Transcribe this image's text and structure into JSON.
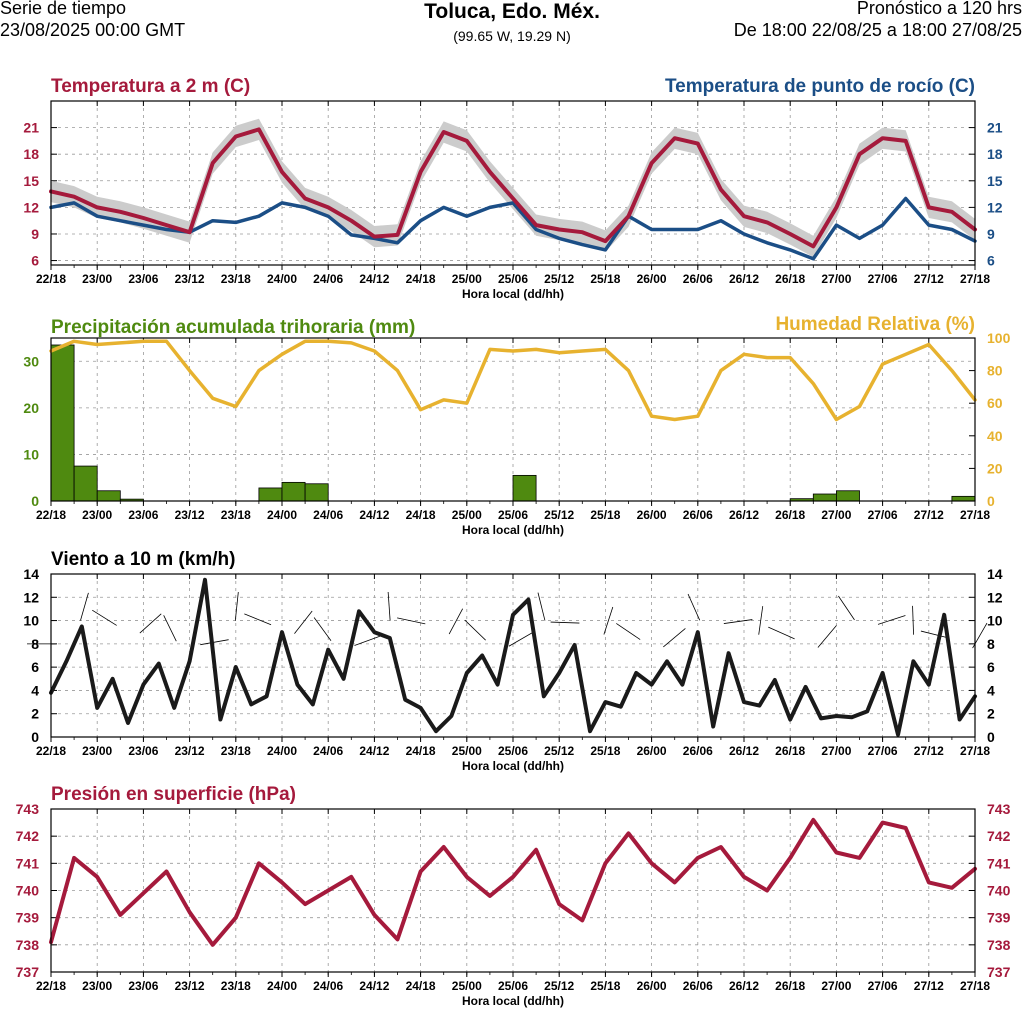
{
  "header": {
    "left_line1": "Serie de tiempo",
    "left_line2": "23/08/2025 00:00 GMT",
    "center_title": "Toluca, Edo. Méx.",
    "center_coords": "(99.65 W, 19.29 N)",
    "right_line1": "Pronóstico a 120 hrs",
    "right_line2": "De 18:00 22/08/25 a 18:00 27/08/25"
  },
  "colors": {
    "temp": "#a51a3c",
    "dew": "#1b4e86",
    "precip": "#4f8a10",
    "rh": "#e7b22f",
    "wind": "#1a1a1a",
    "pres": "#a51a3c",
    "band": "#cccccc",
    "grid": "#9a9a9a"
  },
  "chart_data": [
    {
      "type": "line",
      "title_left": "Temperatura a 2 m (C)",
      "title_right": "Temperatura de punto de rocío (C)",
      "xlabel": "Hora local (dd/hh)",
      "x_ticks": [
        "22/18",
        "23/00",
        "23/06",
        "23/12",
        "23/18",
        "24/00",
        "24/06",
        "24/12",
        "24/18",
        "25/00",
        "25/06",
        "25/12",
        "25/18",
        "26/00",
        "26/06",
        "26/12",
        "26/18",
        "27/00",
        "27/06",
        "27/12",
        "27/18"
      ],
      "x_range": [
        0,
        120
      ],
      "ylim": [
        5.5,
        24
      ],
      "y_ticks": [
        6,
        9,
        12,
        15,
        18,
        21
      ],
      "band_spread": 1.2,
      "series": [
        {
          "name": "Temperatura a 2 m",
          "x": [
            0,
            3,
            6,
            9,
            12,
            15,
            18,
            21,
            24,
            27,
            30,
            33,
            36,
            39,
            42,
            45,
            48,
            51,
            54,
            57,
            60,
            63,
            66,
            69,
            72,
            75,
            78,
            81,
            84,
            87,
            90,
            93,
            96,
            99,
            102,
            105,
            108,
            111,
            114,
            117,
            120
          ],
          "values": [
            13.8,
            13.2,
            12,
            11.5,
            10.8,
            10,
            9.2,
            17,
            20,
            20.8,
            16,
            13,
            12,
            10.5,
            8.7,
            8.9,
            16,
            20.5,
            19.5,
            16,
            13,
            10,
            9.5,
            9.2,
            8.2,
            11,
            17,
            19.8,
            19.2,
            14,
            11,
            10.3,
            9,
            7.6,
            12,
            18,
            19.8,
            19.5,
            12,
            11.5,
            9.5
          ]
        },
        {
          "name": "Temperatura de punto de rocío",
          "x": [
            0,
            3,
            6,
            9,
            12,
            15,
            18,
            21,
            24,
            27,
            30,
            33,
            36,
            39,
            42,
            45,
            48,
            51,
            54,
            57,
            60,
            63,
            66,
            69,
            72,
            75,
            78,
            81,
            84,
            87,
            90,
            93,
            96,
            99,
            102,
            105,
            108,
            111,
            114,
            117,
            120
          ],
          "values": [
            12,
            12.5,
            11,
            10.5,
            10,
            9.5,
            9.2,
            10.5,
            10.3,
            11,
            12.5,
            12,
            11,
            8.9,
            8.5,
            8,
            10.5,
            12,
            11,
            12,
            12.5,
            9.5,
            8.5,
            7.8,
            7.2,
            11,
            9.5,
            9.5,
            9.5,
            10.5,
            9,
            8,
            7.2,
            6.2,
            10,
            8.5,
            10,
            13,
            10,
            9.5,
            8.2
          ]
        }
      ],
      "right_y_ticks": [
        6,
        9,
        12,
        15,
        18,
        21
      ]
    },
    {
      "type": "bar",
      "title_left": "Precipitación acumulada trihoraria (mm)",
      "title_right": "Humedad Relativa (%)",
      "xlabel": "Hora local (dd/hh)",
      "x_ticks": [
        "22/18",
        "23/00",
        "23/06",
        "23/12",
        "23/18",
        "24/00",
        "24/06",
        "24/12",
        "24/18",
        "25/00",
        "25/06",
        "25/12",
        "25/18",
        "26/00",
        "26/06",
        "26/12",
        "26/18",
        "27/00",
        "27/06",
        "27/12",
        "27/18"
      ],
      "x_range": [
        0,
        120
      ],
      "ylim": [
        0,
        35
      ],
      "y_ticks": [
        0,
        10,
        20,
        30
      ],
      "y2lim": [
        0,
        100
      ],
      "y2_ticks": [
        0,
        20,
        40,
        60,
        80,
        100
      ],
      "bars": {
        "name": "Precipitación acumulada trihoraria",
        "start_x": [
          0,
          3,
          6,
          9,
          27,
          30,
          33,
          60,
          96,
          99,
          102
        ],
        "values": [
          33.5,
          7.5,
          2.2,
          0.4,
          2.8,
          4,
          3.7,
          5.5,
          0.5,
          1.5,
          2.2
        ],
        "extra_start_x": [
          117
        ],
        "extra_values": [
          1
        ]
      },
      "series": [
        {
          "name": "Humedad Relativa",
          "x": [
            0,
            3,
            6,
            9,
            12,
            15,
            18,
            21,
            24,
            27,
            30,
            33,
            36,
            39,
            42,
            45,
            48,
            51,
            54,
            57,
            60,
            63,
            66,
            69,
            72,
            75,
            78,
            81,
            84,
            87,
            90,
            93,
            96,
            99,
            102,
            105,
            108,
            111,
            114,
            117,
            120
          ],
          "values": [
            92,
            98,
            96,
            97,
            98,
            98,
            80,
            63,
            58,
            80,
            90,
            98,
            98,
            97,
            92,
            80,
            56,
            62,
            60,
            93,
            92,
            93,
            91,
            92,
            93,
            80,
            52,
            50,
            52,
            80,
            90,
            88,
            88,
            72,
            50,
            58,
            84,
            90,
            96,
            80,
            62
          ]
        }
      ]
    },
    {
      "type": "line",
      "title_left": "Viento a 10 m (km/h)",
      "xlabel": "Hora local (dd/hh)",
      "x_ticks": [
        "22/18",
        "23/00",
        "23/06",
        "23/12",
        "23/18",
        "24/00",
        "24/06",
        "24/12",
        "24/18",
        "25/00",
        "25/06",
        "25/12",
        "25/18",
        "26/00",
        "26/06",
        "26/12",
        "26/18",
        "27/00",
        "27/06",
        "27/12",
        "27/18"
      ],
      "x_range": [
        0,
        120
      ],
      "ylim": [
        0,
        14
      ],
      "y_ticks": [
        0,
        2,
        4,
        6,
        8,
        10,
        12,
        14
      ],
      "series": [
        {
          "name": "Viento a 10 m",
          "x": [
            0,
            2,
            4,
            6,
            8,
            10,
            12,
            14,
            16,
            18,
            20,
            22,
            24,
            26,
            28,
            30,
            32,
            34,
            36,
            38,
            40,
            42,
            44,
            46,
            48,
            50,
            52,
            54,
            56,
            58,
            60,
            62,
            64,
            66,
            68,
            70,
            72,
            74,
            76,
            78,
            80,
            82,
            84,
            86,
            88,
            90,
            92,
            94,
            96,
            98,
            100,
            102,
            104,
            106,
            108,
            110,
            112,
            114,
            116,
            118,
            120
          ],
          "values": [
            3.8,
            6.5,
            9.5,
            2.5,
            5,
            1.2,
            4.5,
            6.3,
            2.5,
            6.5,
            13.5,
            1.5,
            6,
            2.8,
            3.5,
            9,
            4.5,
            2.8,
            7.5,
            5,
            10.8,
            9,
            8.5,
            3.2,
            2.5,
            0.5,
            1.8,
            5.5,
            7,
            4.5,
            10.5,
            11.8,
            3.5,
            5.5,
            7.9,
            0.5,
            3,
            2.6,
            5.5,
            4.5,
            6.5,
            4.5,
            9,
            0.9,
            7.2,
            3,
            2.7,
            4.9,
            1.5,
            4.3,
            1.6,
            1.8,
            1.7,
            2.2,
            5.5,
            0.2,
            6.5,
            4.5,
            10.5,
            1.5,
            3.5
          ],
          "barbs": true
        }
      ],
      "right_y_ticks": [
        0,
        2,
        4,
        6,
        8,
        10,
        12,
        14
      ]
    },
    {
      "type": "line",
      "title_left": "Presión en superficie (hPa)",
      "xlabel": "Hora local (dd/hh)",
      "x_ticks": [
        "22/18",
        "23/00",
        "23/06",
        "23/12",
        "23/18",
        "24/00",
        "24/06",
        "24/12",
        "24/18",
        "25/00",
        "25/06",
        "25/12",
        "25/18",
        "26/00",
        "26/06",
        "26/12",
        "26/18",
        "27/00",
        "27/06",
        "27/12",
        "27/18"
      ],
      "x_range": [
        0,
        120
      ],
      "ylim": [
        737,
        743
      ],
      "y_ticks": [
        737,
        738,
        739,
        740,
        741,
        742,
        743
      ],
      "series": [
        {
          "name": "Presión en superficie",
          "x": [
            0,
            3,
            6,
            9,
            12,
            15,
            18,
            21,
            24,
            27,
            30,
            33,
            36,
            39,
            42,
            45,
            48,
            51,
            54,
            57,
            60,
            63,
            66,
            69,
            72,
            75,
            78,
            81,
            84,
            87,
            90,
            93,
            96,
            99,
            102,
            105,
            108,
            111,
            114,
            117,
            120
          ],
          "values": [
            738.1,
            741.2,
            740.5,
            739.1,
            739.9,
            740.7,
            739.2,
            738.0,
            739.0,
            741.0,
            740.3,
            739.5,
            740.0,
            740.5,
            739.1,
            738.2,
            740.7,
            741.6,
            740.5,
            739.8,
            740.5,
            741.5,
            739.5,
            738.9,
            741.0,
            742.1,
            741.0,
            740.3,
            741.2,
            741.6,
            740.5,
            740.0,
            741.2,
            742.6,
            741.4,
            741.2,
            742.5,
            742.3,
            740.3,
            740.1,
            740.8
          ],
          "right_y_ticks": [
            737,
            738,
            739,
            740,
            741,
            742,
            743
          ]
        }
      ]
    }
  ]
}
